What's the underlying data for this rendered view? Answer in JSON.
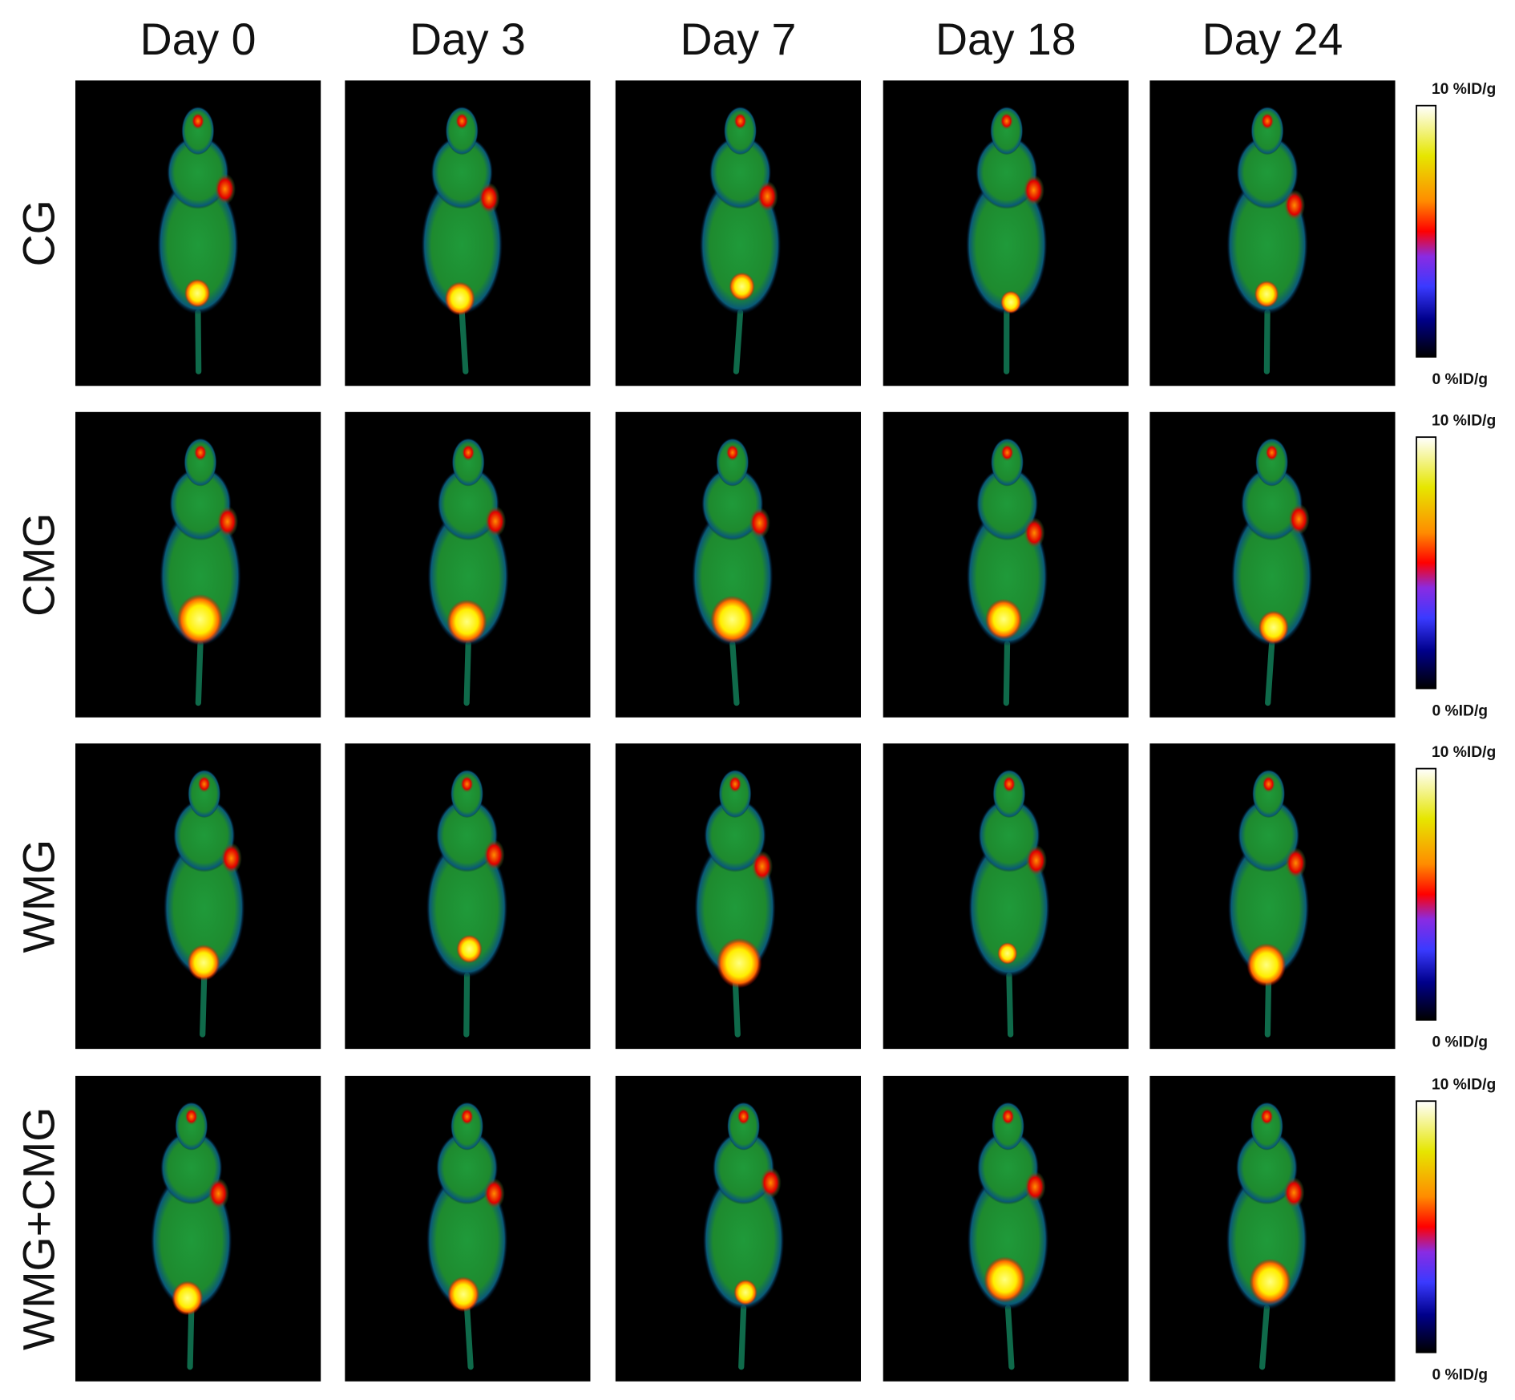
{
  "columns": [
    "Day 0",
    "Day 3",
    "Day 7",
    "Day 18",
    "Day 24"
  ],
  "rows": [
    {
      "label": "CG",
      "scale_max": "10 %ID/g",
      "scale_min": "0 %ID/g"
    },
    {
      "label": "CMG",
      "scale_max": "10 %ID/g",
      "scale_min": "0 %ID/g"
    },
    {
      "label": "WMG",
      "scale_max": "10 %ID/g",
      "scale_min": "0 %ID/g"
    },
    {
      "label": "WMG+CMG",
      "scale_max": "10 %ID/g",
      "scale_min": "0 %ID/g"
    }
  ]
}
